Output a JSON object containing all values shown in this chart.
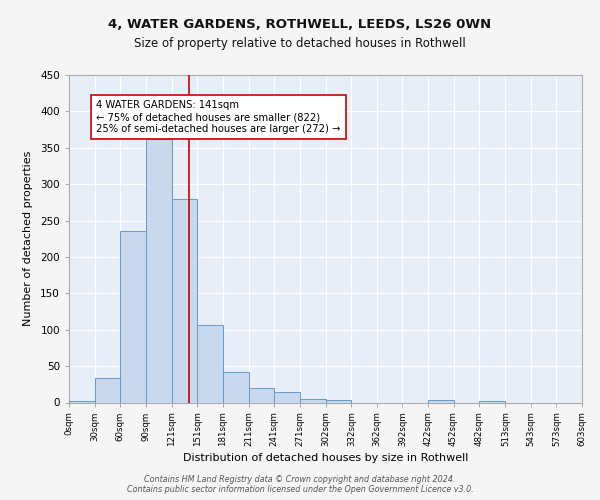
{
  "title1": "4, WATER GARDENS, ROTHWELL, LEEDS, LS26 0WN",
  "title2": "Size of property relative to detached houses in Rothwell",
  "xlabel": "Distribution of detached houses by size in Rothwell",
  "ylabel": "Number of detached properties",
  "bin_edges": [
    0,
    30,
    60,
    90,
    121,
    151,
    181,
    211,
    241,
    271,
    302,
    332,
    362,
    392,
    422,
    452,
    482,
    513,
    543,
    573,
    603
  ],
  "bar_heights": [
    2,
    33,
    235,
    362,
    280,
    106,
    42,
    20,
    15,
    5,
    3,
    0,
    0,
    0,
    3,
    0,
    2,
    0,
    0,
    0
  ],
  "bar_color": "#c8d9ee",
  "bar_edge_color": "#6699cc",
  "vline_x": 141,
  "vline_color": "#cc0000",
  "annotation_text": "4 WATER GARDENS: 141sqm\n← 75% of detached houses are smaller (822)\n25% of semi-detached houses are larger (272) →",
  "annotation_box_color": "#ffffff",
  "annotation_box_edge_color": "#cc0000",
  "footer_text": "Contains HM Land Registry data © Crown copyright and database right 2024.\nContains public sector information licensed under the Open Government Licence v3.0.",
  "bg_color": "#e8eef8",
  "grid_color": "#ffffff",
  "fig_bg_color": "#f5f5f5",
  "ylim": [
    0,
    450
  ],
  "tick_labels": [
    "0sqm",
    "30sqm",
    "60sqm",
    "90sqm",
    "121sqm",
    "151sqm",
    "181sqm",
    "211sqm",
    "241sqm",
    "271sqm",
    "302sqm",
    "332sqm",
    "362sqm",
    "392sqm",
    "422sqm",
    "452sqm",
    "482sqm",
    "513sqm",
    "543sqm",
    "573sqm",
    "603sqm"
  ]
}
